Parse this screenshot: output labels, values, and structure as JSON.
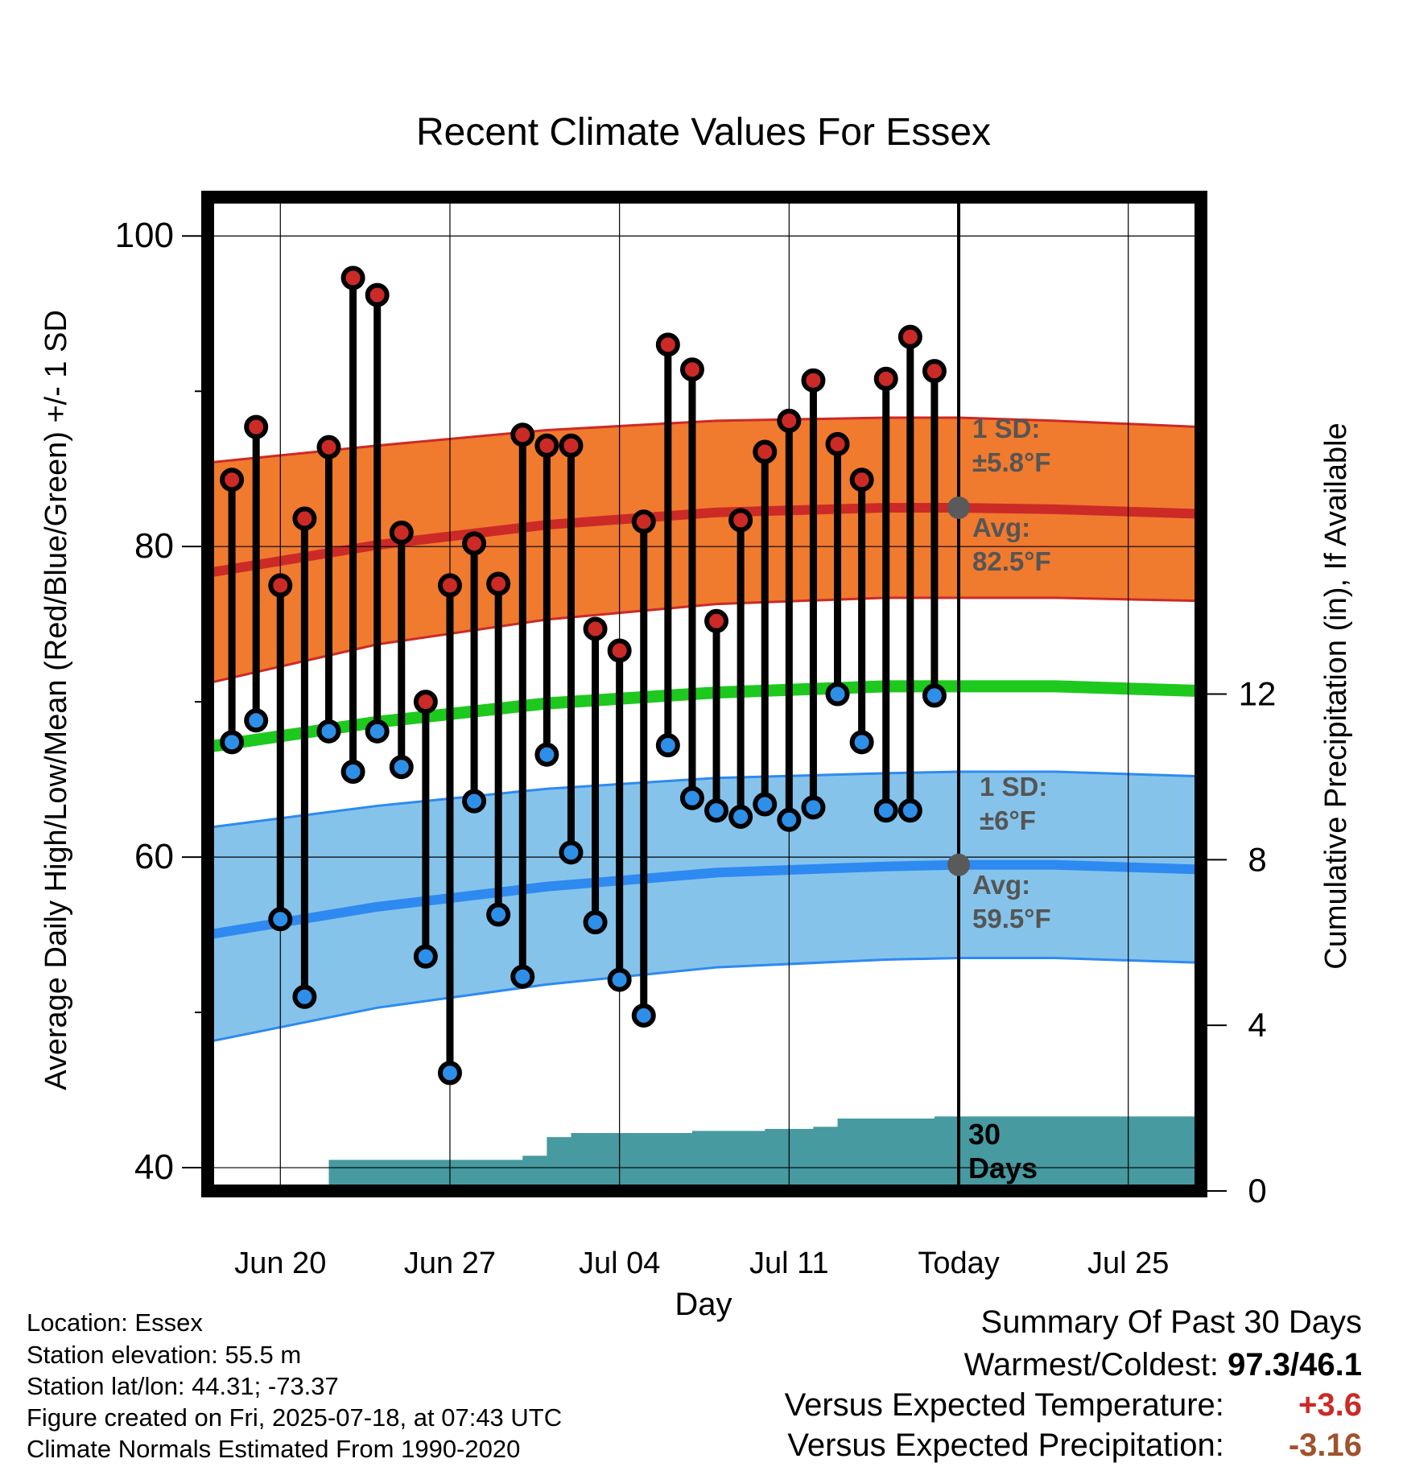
{
  "chart_data": {
    "type": "line",
    "title": "Recent Climate Values For Essex",
    "xlabel": "Day",
    "ylabel": "Average Daily High/Low/Mean (Red/Blue/Green) +/- 1 SD",
    "ylabel_right": "Cumulative Precipitation (in), If Available",
    "x_tick_labels": [
      "Jun 20",
      "Jun 27",
      "Jul 04",
      "Jul 11",
      "Today",
      "Jul 25"
    ],
    "y_ticks": [
      40,
      60,
      80,
      100
    ],
    "y2_ticks": [
      0,
      4,
      8,
      12
    ],
    "today_label": "Today",
    "x_start_date": "2025-06-17",
    "x_end_date": "2025-07-28",
    "today_date": "2025-07-18",
    "ylim": [
      38.5,
      102.5
    ],
    "y2lim": [
      0,
      24
    ],
    "grid": true,
    "daily": [
      {
        "date": "2025-06-18",
        "high": 84.3,
        "low": 67.4
      },
      {
        "date": "2025-06-19",
        "high": 87.7,
        "low": 68.8
      },
      {
        "date": "2025-06-20",
        "high": 77.5,
        "low": 56.0
      },
      {
        "date": "2025-06-21",
        "high": 81.8,
        "low": 51.0
      },
      {
        "date": "2025-06-22",
        "high": 86.4,
        "low": 68.1
      },
      {
        "date": "2025-06-23",
        "high": 97.3,
        "low": 65.5
      },
      {
        "date": "2025-06-24",
        "high": 96.2,
        "low": 68.1
      },
      {
        "date": "2025-06-25",
        "high": 80.9,
        "low": 65.8
      },
      {
        "date": "2025-06-26",
        "high": 70.0,
        "low": 53.6
      },
      {
        "date": "2025-06-27",
        "high": 77.5,
        "low": 46.1
      },
      {
        "date": "2025-06-28",
        "high": 80.2,
        "low": 63.6
      },
      {
        "date": "2025-06-29",
        "high": 77.6,
        "low": 56.3
      },
      {
        "date": "2025-06-30",
        "high": 87.2,
        "low": 52.3
      },
      {
        "date": "2025-07-01",
        "high": 86.5,
        "low": 66.6
      },
      {
        "date": "2025-07-02",
        "high": 86.5,
        "low": 60.3
      },
      {
        "date": "2025-07-03",
        "high": 74.7,
        "low": 55.8
      },
      {
        "date": "2025-07-04",
        "high": 73.3,
        "low": 52.1
      },
      {
        "date": "2025-07-05",
        "high": 81.6,
        "low": 49.8
      },
      {
        "date": "2025-07-06",
        "high": 93.0,
        "low": 67.2
      },
      {
        "date": "2025-07-07",
        "high": 91.4,
        "low": 63.8
      },
      {
        "date": "2025-07-08",
        "high": 75.2,
        "low": 63.0
      },
      {
        "date": "2025-07-09",
        "high": 81.7,
        "low": 62.6
      },
      {
        "date": "2025-07-10",
        "high": 86.1,
        "low": 63.4
      },
      {
        "date": "2025-07-11",
        "high": 88.1,
        "low": 62.4
      },
      {
        "date": "2025-07-12",
        "high": 90.7,
        "low": 63.2
      },
      {
        "date": "2025-07-13",
        "high": 86.6,
        "low": 70.5
      },
      {
        "date": "2025-07-14",
        "high": 84.3,
        "low": 67.4
      },
      {
        "date": "2025-07-15",
        "high": 90.8,
        "low": 63.0
      },
      {
        "date": "2025-07-16",
        "high": 93.5,
        "low": 63.0
      },
      {
        "date": "2025-07-17",
        "high": 91.3,
        "low": 70.4
      }
    ],
    "normals": [
      {
        "date": "2025-06-17",
        "high": 78.3,
        "high_sd": 7.1,
        "low": 55.0,
        "low_sd": 6.9,
        "mean": 67.1
      },
      {
        "date": "2025-06-24",
        "high": 80.1,
        "high_sd": 6.4,
        "low": 56.8,
        "low_sd": 6.5,
        "mean": 68.7
      },
      {
        "date": "2025-07-01",
        "high": 81.4,
        "high_sd": 6.1,
        "low": 58.1,
        "low_sd": 6.3,
        "mean": 69.9
      },
      {
        "date": "2025-07-08",
        "high": 82.2,
        "high_sd": 5.9,
        "low": 59.0,
        "low_sd": 6.1,
        "mean": 70.6
      },
      {
        "date": "2025-07-15",
        "high": 82.5,
        "high_sd": 5.8,
        "low": 59.4,
        "low_sd": 6.0,
        "mean": 71.0
      },
      {
        "date": "2025-07-18",
        "high": 82.5,
        "high_sd": 5.8,
        "low": 59.5,
        "low_sd": 6.0,
        "mean": 71.0
      },
      {
        "date": "2025-07-22",
        "high": 82.4,
        "high_sd": 5.7,
        "low": 59.5,
        "low_sd": 6.0,
        "mean": 71.0
      },
      {
        "date": "2025-07-28",
        "high": 82.1,
        "high_sd": 5.6,
        "low": 59.2,
        "low_sd": 6.0,
        "mean": 70.7
      }
    ],
    "precipitation": [
      {
        "date": "2025-06-17",
        "value": 0.0
      },
      {
        "date": "2025-06-18",
        "value": 0.02
      },
      {
        "date": "2025-06-21",
        "value": 0.05
      },
      {
        "date": "2025-06-22",
        "value": 0.75
      },
      {
        "date": "2025-06-30",
        "value": 0.85
      },
      {
        "date": "2025-07-01",
        "value": 1.3
      },
      {
        "date": "2025-07-02",
        "value": 1.4
      },
      {
        "date": "2025-07-07",
        "value": 1.45
      },
      {
        "date": "2025-07-10",
        "value": 1.5
      },
      {
        "date": "2025-07-12",
        "value": 1.55
      },
      {
        "date": "2025-07-13",
        "value": 1.75
      },
      {
        "date": "2025-07-17",
        "value": 1.8
      },
      {
        "date": "2025-07-28",
        "value": 1.85
      }
    ],
    "annotations": {
      "high_sd_label": "1 SD:",
      "high_sd_value": "±5.8°F",
      "high_avg_label": "Avg:",
      "high_avg_value": "82.5°F",
      "low_sd_label": "1 SD:",
      "low_sd_value": "±6°F",
      "low_avg_label": "Avg:",
      "low_avg_value": "59.5°F",
      "days_count": "30",
      "days_label": "Days"
    },
    "colors": {
      "high_band": "#F07A2E",
      "high_line": "#CC2A26",
      "low_band": "#86C3EA",
      "low_line": "#2E8AF0",
      "mean_line": "#1DC91D",
      "precip_fill": "#469AA0",
      "high_dot": "#CC2A26",
      "low_dot": "#2E8FE8",
      "today_dot": "#5A5A5A",
      "annotation_text": "#555555"
    }
  },
  "info": {
    "location": "Location: Essex",
    "elevation": "Station elevation: 55.5 m",
    "latlon": "Station lat/lon: 44.31; -73.37",
    "created": "Figure created on Fri, 2025-07-18, at 07:43 UTC",
    "normals": "Climate Normals Estimated From 1990-2020"
  },
  "summary": {
    "title": "Summary Of Past 30 Days",
    "warmest_label": "Warmest/Coldest:",
    "warmest_value": "97.3/46.1",
    "temp_label": "Versus Expected Temperature:",
    "temp_value": "+3.6",
    "temp_color": "#CC2A26",
    "precip_label": "Versus Expected Precipitation:",
    "precip_value": "-3.16",
    "precip_color": "#A0522D"
  }
}
